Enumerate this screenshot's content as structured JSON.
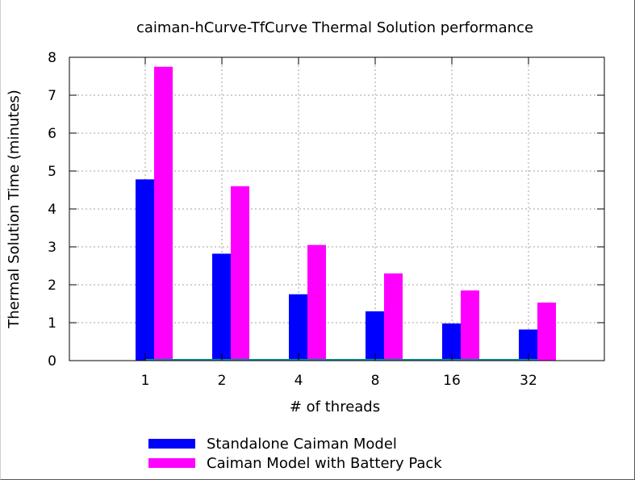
{
  "chart_data": {
    "type": "bar",
    "title": "caiman-hCurve-TfCurve Thermal Solution performance",
    "xlabel": "# of threads",
    "ylabel": "Thermal Solution Time (minutes)",
    "categories": [
      "1",
      "2",
      "4",
      "8",
      "16",
      "32"
    ],
    "ylim": [
      0,
      8
    ],
    "yticks": [
      0,
      1,
      2,
      3,
      4,
      5,
      6,
      7,
      8
    ],
    "grid": true,
    "legend_position": "bottom",
    "series": [
      {
        "name": "Standalone Caiman Model",
        "color": "#0000ff",
        "values": [
          4.78,
          2.82,
          1.75,
          1.3,
          0.98,
          0.82
        ]
      },
      {
        "name": "Caiman Model with Battery Pack",
        "color": "#ff00ff",
        "values": [
          7.75,
          4.6,
          3.05,
          2.3,
          1.85,
          1.53
        ]
      }
    ]
  }
}
